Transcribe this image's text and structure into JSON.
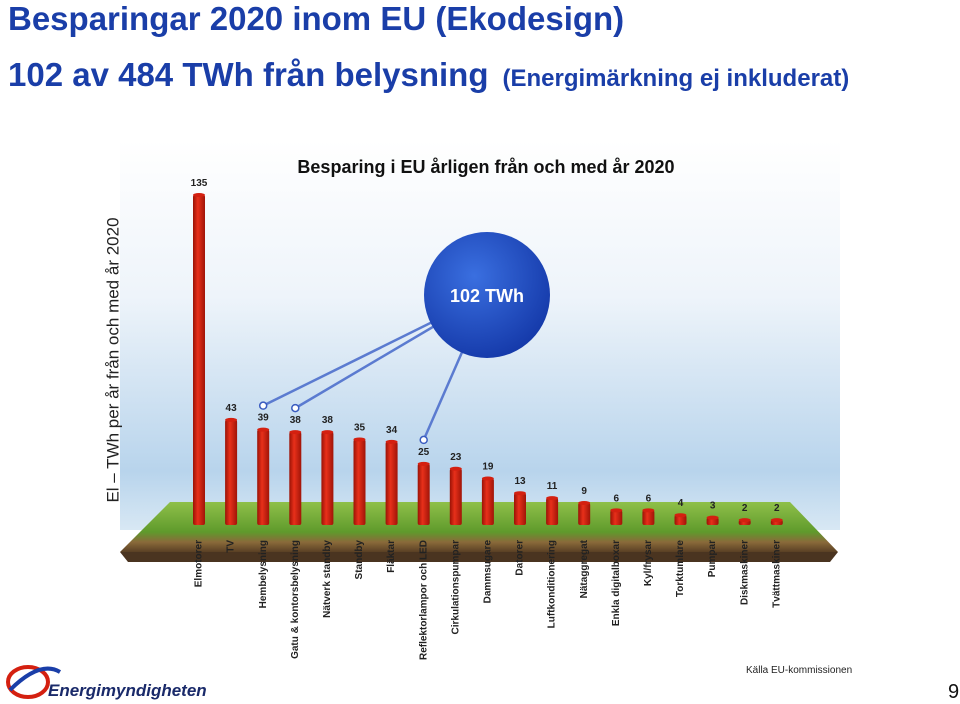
{
  "header": {
    "title": "Besparingar 2020 inom EU (Ekodesign)",
    "subtitle": "102 av 484 TWh från belysning",
    "note": "(Energimärkning ej inkluderat)"
  },
  "chart_data": {
    "type": "bar",
    "title": "Besparing i EU årligen från och med år 2020",
    "y_label": "El – TWh per år från och med år 2020",
    "annotation": "102 TWh",
    "categories": [
      "Elmotorer",
      "TV",
      "Hembelysning",
      "Gatu & kontorsbelysning",
      "Nätverk standby",
      "Standby",
      "Fläktar",
      "Reflektorlampor och LED",
      "Cirkulationspumpar",
      "Dammsugare",
      "Datorer",
      "Luftkonditionering",
      "Nätaggregat",
      "Enkla digitalboxar",
      "Kyl/frysar",
      "Torktumlare",
      "Pumpar",
      "Diskmaskiner",
      "Tvättmaskiner"
    ],
    "values": [
      135,
      43,
      39,
      38,
      38,
      35,
      34,
      25,
      23,
      19,
      13,
      11,
      9,
      6,
      6,
      4,
      3,
      2,
      2
    ],
    "color": "#d42010"
  },
  "footer": {
    "source": "Källa EU-kommissionen",
    "page": "9",
    "logo": "Energimyndigheten"
  }
}
